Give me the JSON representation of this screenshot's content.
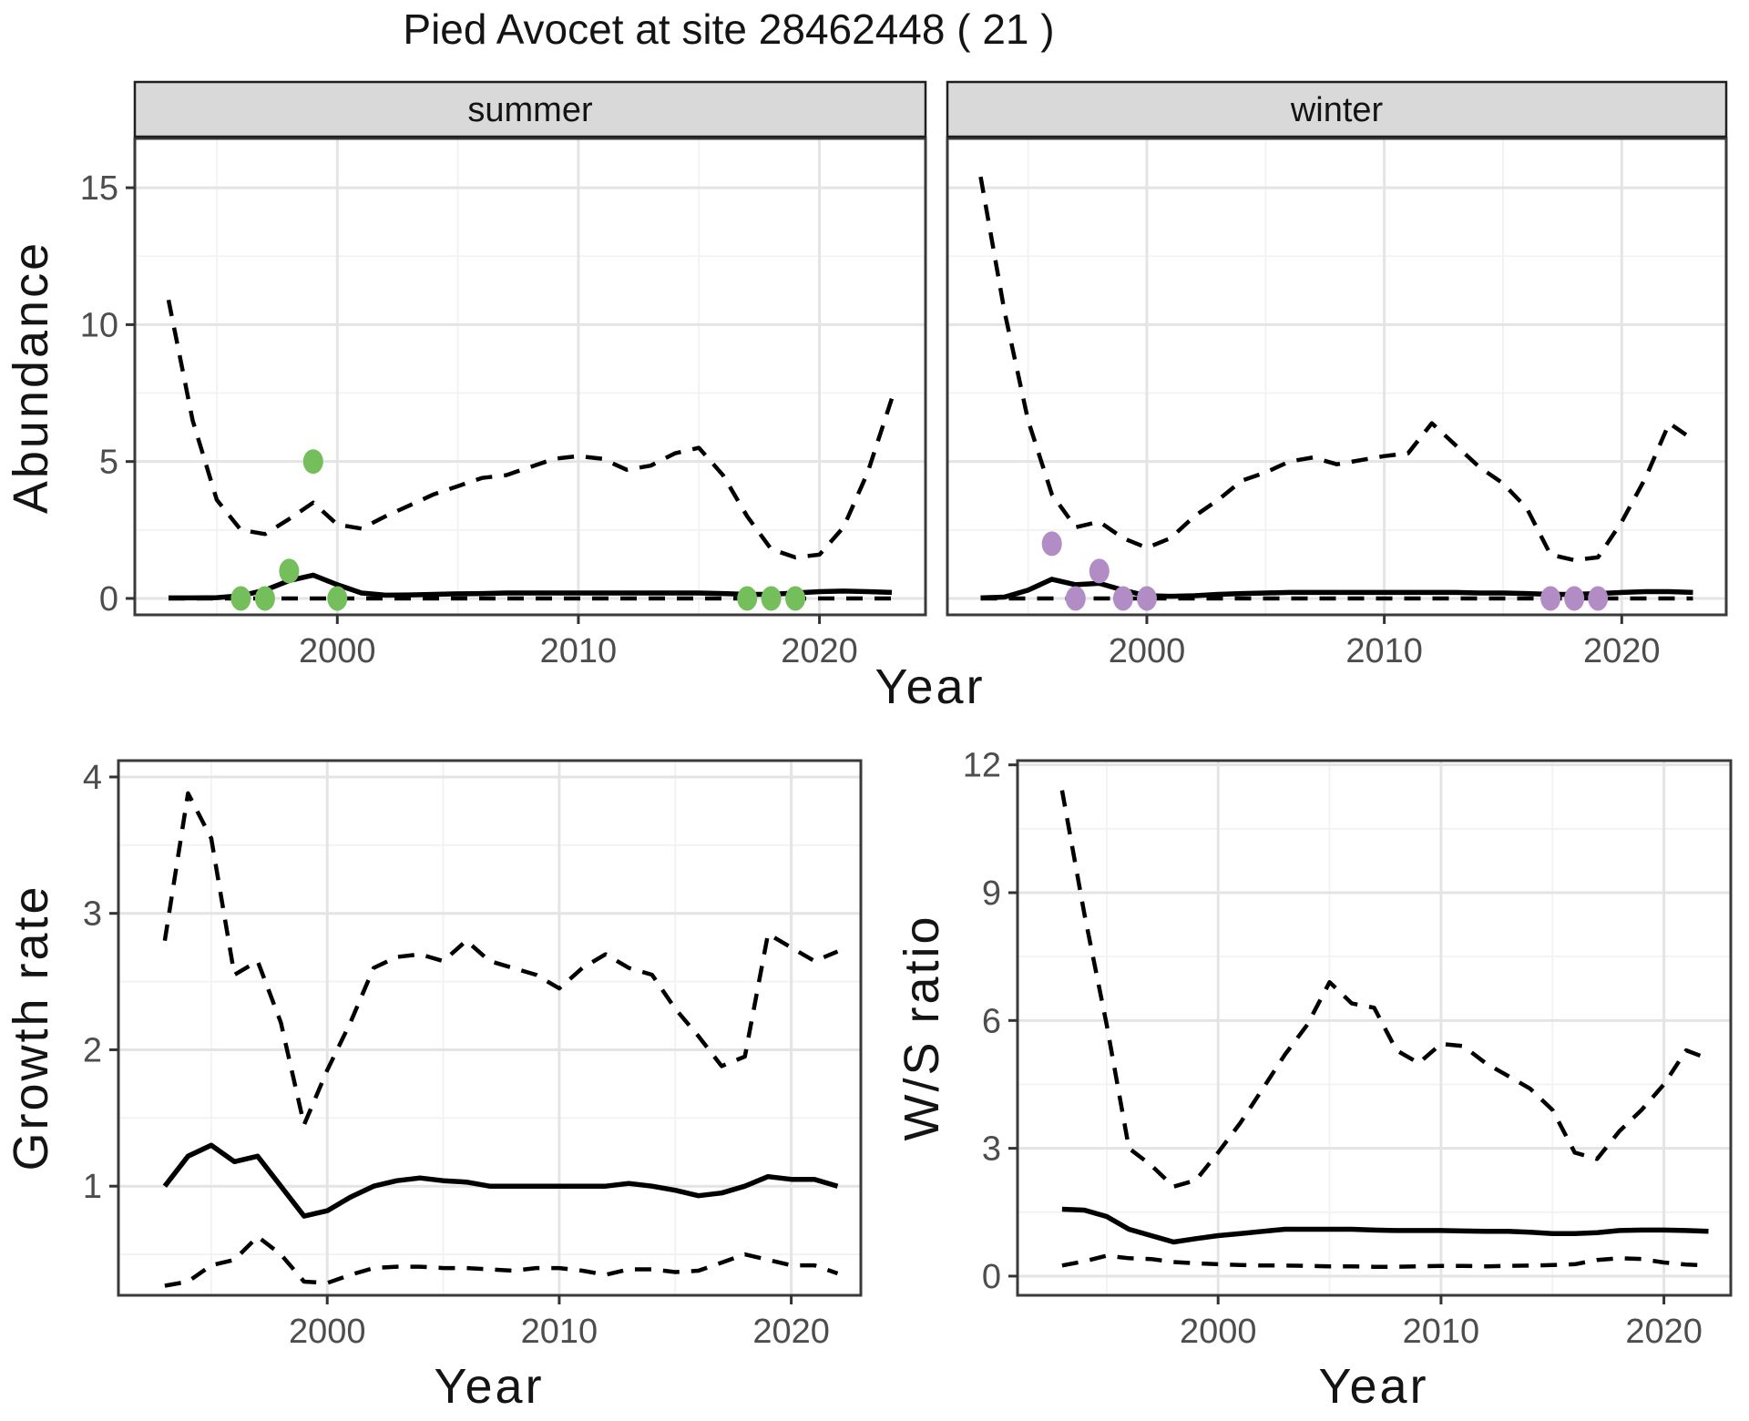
{
  "title": "Pied Avocet at site 28462448 ( 21 )",
  "facets": {
    "summer": "summer",
    "winter": "winter"
  },
  "axis_titles": {
    "abundance": "Abundance",
    "growth_rate": "Growth rate",
    "ws_ratio": "W/S ratio",
    "year": "Year"
  },
  "colors": {
    "summer_point": "#74be5c",
    "winter_point": "#b18cc5",
    "line": "#000000",
    "grid_major": "#e4e4e4",
    "grid_minor": "#f2f2f2",
    "strip_bg": "#d9d9d9",
    "strip_border": "#1f1f1f",
    "panel_border": "#3a3a3a",
    "tick_mark": "#333333",
    "axis_text": "#4d4d4d"
  },
  "chart_data": [
    {
      "id": "abundance-summer",
      "type": "line",
      "title": "summer",
      "xlabel": "Year",
      "ylabel": "Abundance",
      "xlim": [
        1991.6,
        2024.4
      ],
      "ylim": [
        -0.6,
        16.8
      ],
      "xticks": [
        2000,
        2010,
        2020
      ],
      "xminor": [
        1995,
        2005,
        2015
      ],
      "yticks": [
        0,
        5,
        10,
        15
      ],
      "yminor": [
        2.5,
        7.5,
        12.5
      ],
      "grid": true,
      "x": [
        1993,
        1994,
        1995,
        1996,
        1997,
        1998,
        1999,
        2000,
        2001,
        2002,
        2003,
        2004,
        2005,
        2006,
        2007,
        2008,
        2009,
        2010,
        2011,
        2012,
        2013,
        2014,
        2015,
        2016,
        2017,
        2018,
        2019,
        2020,
        2021,
        2022,
        2023
      ],
      "series": [
        {
          "name": "median estimate",
          "style": "solid",
          "values": [
            0.02,
            0.02,
            0.03,
            0.1,
            0.3,
            0.65,
            0.85,
            0.5,
            0.2,
            0.12,
            0.13,
            0.15,
            0.17,
            0.18,
            0.2,
            0.2,
            0.2,
            0.2,
            0.2,
            0.2,
            0.2,
            0.2,
            0.2,
            0.18,
            0.15,
            0.15,
            0.2,
            0.25,
            0.27,
            0.25,
            0.22
          ]
        },
        {
          "name": "upper credible interval",
          "style": "dashed",
          "values": [
            10.9,
            6.5,
            3.6,
            2.5,
            2.35,
            2.9,
            3.5,
            2.7,
            2.55,
            3.0,
            3.4,
            3.8,
            4.1,
            4.4,
            4.5,
            4.8,
            5.1,
            5.2,
            5.1,
            4.7,
            4.85,
            5.3,
            5.5,
            4.5,
            3.0,
            1.8,
            1.5,
            1.6,
            2.6,
            4.6,
            7.3
          ]
        },
        {
          "name": "lower credible interval",
          "style": "dashed",
          "values": [
            0,
            0,
            0,
            0,
            0,
            0,
            0,
            0,
            0,
            0,
            0,
            0,
            0,
            0,
            0,
            0,
            0,
            0,
            0,
            0,
            0,
            0,
            0,
            0,
            0,
            0,
            0,
            0,
            0,
            0,
            0
          ]
        }
      ],
      "points": {
        "name": "observed summer counts",
        "color_key": "summer_point",
        "xy": [
          [
            1996,
            0
          ],
          [
            1997,
            0
          ],
          [
            1998,
            1
          ],
          [
            1999,
            5
          ],
          [
            2000,
            0
          ],
          [
            2017,
            0
          ],
          [
            2018,
            0
          ],
          [
            2019,
            0
          ]
        ]
      }
    },
    {
      "id": "abundance-winter",
      "type": "line",
      "title": "winter",
      "xlabel": "Year",
      "ylabel": "Abundance",
      "xlim": [
        1991.6,
        2024.4
      ],
      "ylim": [
        -0.6,
        16.8
      ],
      "xticks": [
        2000,
        2010,
        2020
      ],
      "xminor": [
        1995,
        2005,
        2015
      ],
      "yticks": [
        0,
        5,
        10,
        15
      ],
      "yminor": [
        2.5,
        7.5,
        12.5
      ],
      "grid": true,
      "x": [
        1993,
        1994,
        1995,
        1996,
        1997,
        1998,
        1999,
        2000,
        2001,
        2002,
        2003,
        2004,
        2005,
        2006,
        2007,
        2008,
        2009,
        2010,
        2011,
        2012,
        2013,
        2014,
        2015,
        2016,
        2017,
        2018,
        2019,
        2020,
        2021,
        2022,
        2023
      ],
      "series": [
        {
          "name": "median estimate",
          "style": "solid",
          "values": [
            0.02,
            0.05,
            0.3,
            0.7,
            0.5,
            0.55,
            0.3,
            0.1,
            0.08,
            0.1,
            0.15,
            0.18,
            0.2,
            0.22,
            0.22,
            0.22,
            0.22,
            0.22,
            0.22,
            0.22,
            0.22,
            0.2,
            0.2,
            0.18,
            0.15,
            0.15,
            0.18,
            0.22,
            0.25,
            0.25,
            0.22
          ]
        },
        {
          "name": "upper credible interval",
          "style": "dashed",
          "values": [
            15.4,
            10.5,
            6.5,
            3.8,
            2.6,
            2.8,
            2.2,
            1.85,
            2.2,
            3.0,
            3.6,
            4.3,
            4.6,
            5.0,
            5.15,
            4.9,
            5.05,
            5.2,
            5.3,
            6.4,
            5.6,
            4.8,
            4.2,
            3.3,
            1.6,
            1.4,
            1.5,
            2.8,
            4.4,
            6.4,
            5.8
          ]
        },
        {
          "name": "lower credible interval",
          "style": "dashed",
          "values": [
            0,
            0,
            0,
            0,
            0,
            0,
            0,
            0,
            0,
            0,
            0,
            0,
            0,
            0,
            0,
            0,
            0,
            0,
            0,
            0,
            0,
            0,
            0,
            0,
            0,
            0,
            0,
            0,
            0,
            0,
            0
          ]
        }
      ],
      "points": {
        "name": "observed winter counts",
        "color_key": "winter_point",
        "xy": [
          [
            1996,
            2
          ],
          [
            1997,
            0
          ],
          [
            1998,
            1
          ],
          [
            1999,
            0
          ],
          [
            2000,
            0
          ],
          [
            2017,
            0
          ],
          [
            2018,
            0
          ],
          [
            2019,
            0
          ]
        ]
      }
    },
    {
      "id": "growth-rate",
      "type": "line",
      "title": "",
      "xlabel": "Year",
      "ylabel": "Growth rate",
      "xlim": [
        1991.0,
        2023.0
      ],
      "ylim": [
        0.2,
        4.12
      ],
      "xticks": [
        2000,
        2010,
        2020
      ],
      "xminor": [
        1995,
        2005,
        2015
      ],
      "yticks": [
        1,
        2,
        3,
        4
      ],
      "yminor": [
        0.5,
        1.5,
        2.5,
        3.5
      ],
      "grid": true,
      "x": [
        1993,
        1994,
        1995,
        1996,
        1997,
        1998,
        1999,
        2000,
        2001,
        2002,
        2003,
        2004,
        2005,
        2006,
        2007,
        2008,
        2009,
        2010,
        2011,
        2012,
        2013,
        2014,
        2015,
        2016,
        2017,
        2018,
        2019,
        2020,
        2021,
        2022
      ],
      "series": [
        {
          "name": "median estimate",
          "style": "solid",
          "values": [
            1.0,
            1.22,
            1.3,
            1.18,
            1.22,
            1.0,
            0.78,
            0.82,
            0.92,
            1.0,
            1.04,
            1.06,
            1.04,
            1.03,
            1.0,
            1.0,
            1.0,
            1.0,
            1.0,
            1.0,
            1.02,
            1.0,
            0.97,
            0.93,
            0.95,
            1.0,
            1.07,
            1.05,
            1.05,
            1.0
          ]
        },
        {
          "name": "upper credible interval",
          "style": "dashed",
          "values": [
            2.8,
            3.88,
            3.55,
            2.55,
            2.65,
            2.2,
            1.45,
            1.85,
            2.2,
            2.6,
            2.68,
            2.7,
            2.65,
            2.8,
            2.65,
            2.6,
            2.55,
            2.45,
            2.6,
            2.7,
            2.6,
            2.55,
            2.3,
            2.1,
            1.88,
            1.95,
            2.85,
            2.75,
            2.65,
            2.72
          ]
        },
        {
          "name": "lower credible interval",
          "style": "dashed",
          "values": [
            0.27,
            0.3,
            0.42,
            0.46,
            0.63,
            0.5,
            0.3,
            0.29,
            0.35,
            0.4,
            0.41,
            0.41,
            0.4,
            0.4,
            0.39,
            0.38,
            0.4,
            0.4,
            0.38,
            0.35,
            0.39,
            0.39,
            0.37,
            0.38,
            0.44,
            0.5,
            0.46,
            0.42,
            0.42,
            0.36
          ]
        }
      ]
    },
    {
      "id": "ws-ratio",
      "type": "line",
      "title": "",
      "xlabel": "Year",
      "ylabel": "W/S ratio",
      "xlim": [
        1991.0,
        2023.0
      ],
      "ylim": [
        -0.45,
        12.1
      ],
      "xticks": [
        2000,
        2010,
        2020
      ],
      "xminor": [
        1995,
        2005,
        2015
      ],
      "yticks": [
        0,
        3,
        6,
        9,
        12
      ],
      "yminor": [
        1.5,
        4.5,
        7.5,
        10.5
      ],
      "grid": true,
      "x": [
        1993,
        1994,
        1995,
        1996,
        1997,
        1998,
        1999,
        2000,
        2001,
        2002,
        2003,
        2004,
        2005,
        2006,
        2007,
        2008,
        2009,
        2010,
        2011,
        2012,
        2013,
        2014,
        2015,
        2016,
        2017,
        2018,
        2019,
        2020,
        2021,
        2022
      ],
      "series": [
        {
          "name": "median estimate",
          "style": "solid",
          "values": [
            1.57,
            1.55,
            1.4,
            1.1,
            0.95,
            0.8,
            0.88,
            0.95,
            1.0,
            1.05,
            1.1,
            1.1,
            1.1,
            1.1,
            1.08,
            1.07,
            1.07,
            1.07,
            1.06,
            1.05,
            1.05,
            1.03,
            1.0,
            1.0,
            1.02,
            1.07,
            1.08,
            1.08,
            1.07,
            1.05
          ]
        },
        {
          "name": "upper credible interval",
          "style": "dashed",
          "values": [
            11.4,
            8.5,
            5.9,
            3.0,
            2.6,
            2.1,
            2.25,
            2.9,
            3.6,
            4.4,
            5.2,
            5.9,
            6.9,
            6.4,
            6.3,
            5.3,
            5.0,
            5.45,
            5.4,
            5.0,
            4.7,
            4.4,
            3.9,
            2.9,
            2.75,
            3.4,
            3.9,
            4.5,
            5.3,
            5.1
          ]
        },
        {
          "name": "lower credible interval",
          "style": "dashed",
          "values": [
            0.25,
            0.35,
            0.48,
            0.42,
            0.4,
            0.33,
            0.3,
            0.28,
            0.26,
            0.25,
            0.25,
            0.24,
            0.23,
            0.23,
            0.22,
            0.22,
            0.23,
            0.24,
            0.24,
            0.23,
            0.24,
            0.25,
            0.26,
            0.28,
            0.38,
            0.42,
            0.4,
            0.32,
            0.27,
            0.25
          ]
        }
      ]
    }
  ]
}
